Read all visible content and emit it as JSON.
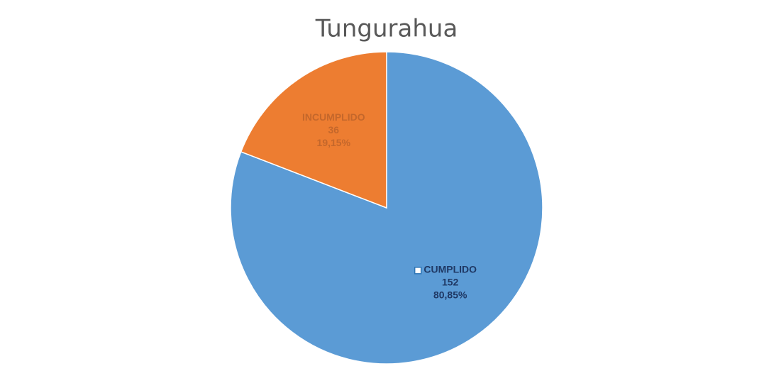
{
  "chart_data": {
    "type": "pie",
    "title": "Tungurahua",
    "categories": [
      "CUMPLIDO",
      "INCUMPLIDO"
    ],
    "values": [
      152,
      36
    ],
    "percent_labels": [
      "80,85%",
      "19,15%"
    ],
    "colors": [
      "#5b9bd5",
      "#ed7d31"
    ]
  }
}
